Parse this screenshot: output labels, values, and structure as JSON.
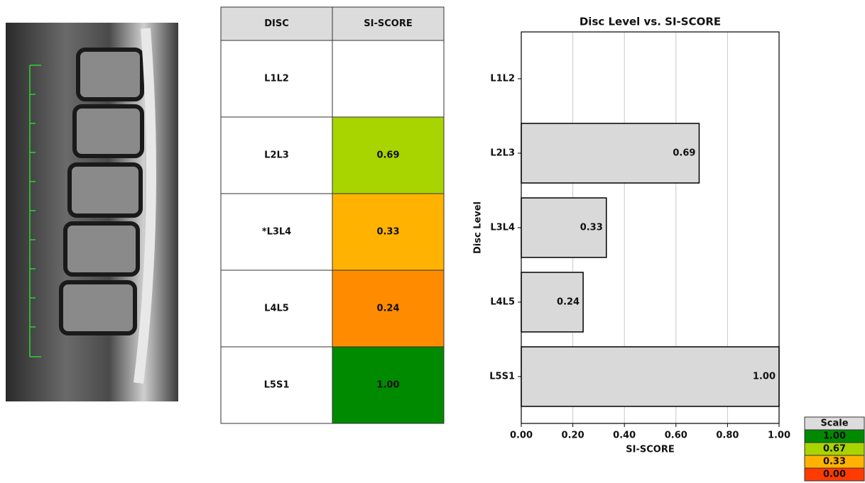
{
  "table": {
    "headers": [
      "DISC",
      "SI-SCORE"
    ],
    "rows": [
      [
        "L1L2",
        null
      ],
      [
        "L2L3",
        "0.69"
      ],
      [
        "*L3L4",
        "0.33"
      ],
      [
        "L4L5",
        "0.24"
      ],
      [
        "L5S1",
        "1.00"
      ]
    ],
    "colors": [
      null,
      "#a8d400",
      "#ffb300",
      "#ff8c00",
      "#008a00"
    ]
  },
  "chart_data": {
    "type": "barh",
    "title": "Disc Level vs. SI-SCORE",
    "categories": [
      "L1L2",
      "L2L3",
      "L3L4",
      "L4L5",
      "L5S1"
    ],
    "values": [
      null,
      0.69,
      0.33,
      0.24,
      1.0
    ],
    "value_labels": [
      null,
      "0.69",
      "0.33",
      "0.24",
      "1.00"
    ],
    "color": "#d9d9d9",
    "edgecolor": "#000000",
    "xlabel": "SI-SCORE",
    "ylabel": "Disc Level",
    "xlim": [
      0,
      1
    ],
    "xticks": [
      {
        "value": 0,
        "label": "0.00"
      },
      {
        "value": 0.2,
        "label": "0.20"
      },
      {
        "value": 0.4,
        "label": "0.40"
      },
      {
        "value": 0.6,
        "label": "0.60"
      },
      {
        "value": 0.8,
        "label": "0.80"
      },
      {
        "value": 1,
        "label": "1.00"
      }
    ],
    "grid": true
  },
  "scale": {
    "title": "Scale",
    "entries": [
      {
        "label": "1.00",
        "color": "#008a00"
      },
      {
        "label": "0.67",
        "color": "#a8d400"
      },
      {
        "label": "0.33",
        "color": "#ffb300"
      },
      {
        "label": "0.00",
        "color": "#ff3b00"
      }
    ]
  }
}
